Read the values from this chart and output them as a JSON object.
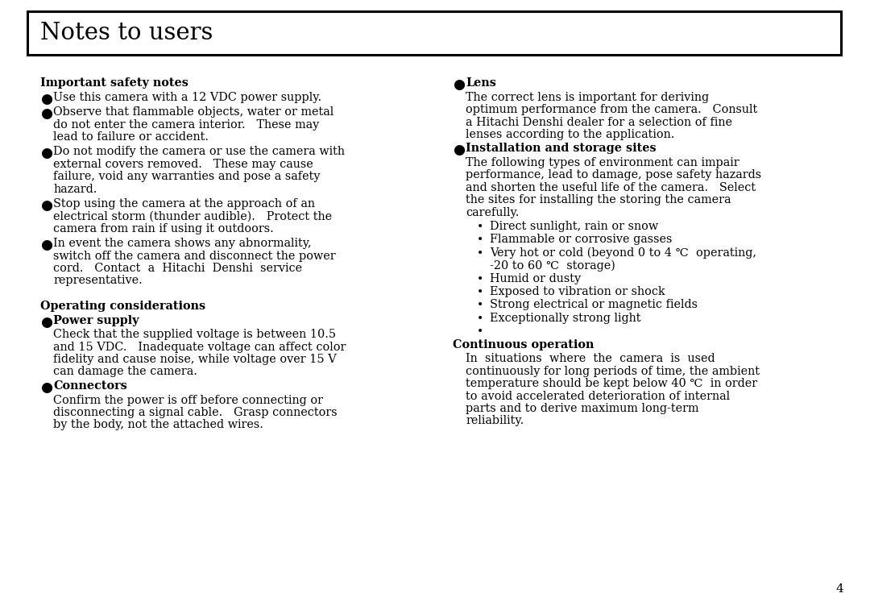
{
  "background_color": "#ffffff",
  "title": "Notes to users",
  "title_fontsize": 21,
  "body_fontsize": 10.5,
  "page_number": "4",
  "left_column": {
    "sections": [
      {
        "type": "heading_bold",
        "text": "Important safety notes"
      },
      {
        "type": "bullet_filled",
        "text": "Use this camera with a 12 VDC power supply."
      },
      {
        "type": "bullet_filled",
        "text": "Observe that flammable objects, water or metal\ndo not enter the camera interior.   These may\nlead to failure or accident."
      },
      {
        "type": "bullet_filled",
        "text": "Do not modify the camera or use the camera with\nexternal covers removed.   These may cause\nfailure, void any warranties and pose a safety\nhazard."
      },
      {
        "type": "bullet_filled",
        "text": "Stop using the camera at the approach of an\nelectrical storm (thunder audible).   Protect the\ncamera from rain if using it outdoors."
      },
      {
        "type": "bullet_filled",
        "text": "In event the camera shows any abnormality,\nswitch off the camera and disconnect the power\ncord.   Contact  a  Hitachi  Denshi  service\nrepresentative."
      },
      {
        "type": "spacer",
        "text": ""
      },
      {
        "type": "heading_bold",
        "text": "Operating considerations"
      },
      {
        "type": "bullet_bold",
        "text": "Power supply"
      },
      {
        "type": "body_indent",
        "text": "Check that the supplied voltage is between 10.5\nand 15 VDC.   Inadequate voltage can affect color\nfidelity and cause noise, while voltage over 15 V\ncan damage the camera."
      },
      {
        "type": "bullet_bold",
        "text": "Connectors"
      },
      {
        "type": "body_indent",
        "text": "Confirm the power is off before connecting or\ndisconnecting a signal cable.   Grasp connectors\nby the body, not the attached wires."
      }
    ]
  },
  "right_column": {
    "sections": [
      {
        "type": "bullet_bold",
        "text": "Lens"
      },
      {
        "type": "body_indent",
        "text": "The correct lens is important for deriving\noptimum performance from the camera.   Consult\na Hitachi Denshi dealer for a selection of fine\nlenses according to the application."
      },
      {
        "type": "bullet_bold",
        "text": "Installation and storage sites"
      },
      {
        "type": "body_indent",
        "text": "The following types of environment can impair\nperformance, lead to damage, pose safety hazards\nand shorten the useful life of the camera.   Select\nthe sites for installing the storing the camera\ncarefully."
      },
      {
        "type": "sub_bullet",
        "text": "Direct sunlight, rain or snow"
      },
      {
        "type": "sub_bullet",
        "text": "Flammable or corrosive gasses"
      },
      {
        "type": "sub_bullet",
        "text": "Very hot or cold (beyond 0 to 4 ℃  operating,\n-20 to 60 ℃  storage)"
      },
      {
        "type": "sub_bullet",
        "text": "Humid or dusty"
      },
      {
        "type": "sub_bullet",
        "text": "Exposed to vibration or shock"
      },
      {
        "type": "sub_bullet",
        "text": "Strong electrical or magnetic fields"
      },
      {
        "type": "sub_bullet",
        "text": "Exceptionally strong light"
      },
      {
        "type": "sub_bullet_empty",
        "text": ""
      },
      {
        "type": "heading_bold",
        "text": "Continuous operation"
      },
      {
        "type": "body_indent",
        "text": "In  situations  where  the  camera  is  used\ncontinuously for long periods of time, the ambient\ntemperature should be kept below 40 ℃  in order\nto avoid accelerated deterioration of internal\nparts and to derive maximum long-term\nreliability."
      }
    ]
  }
}
